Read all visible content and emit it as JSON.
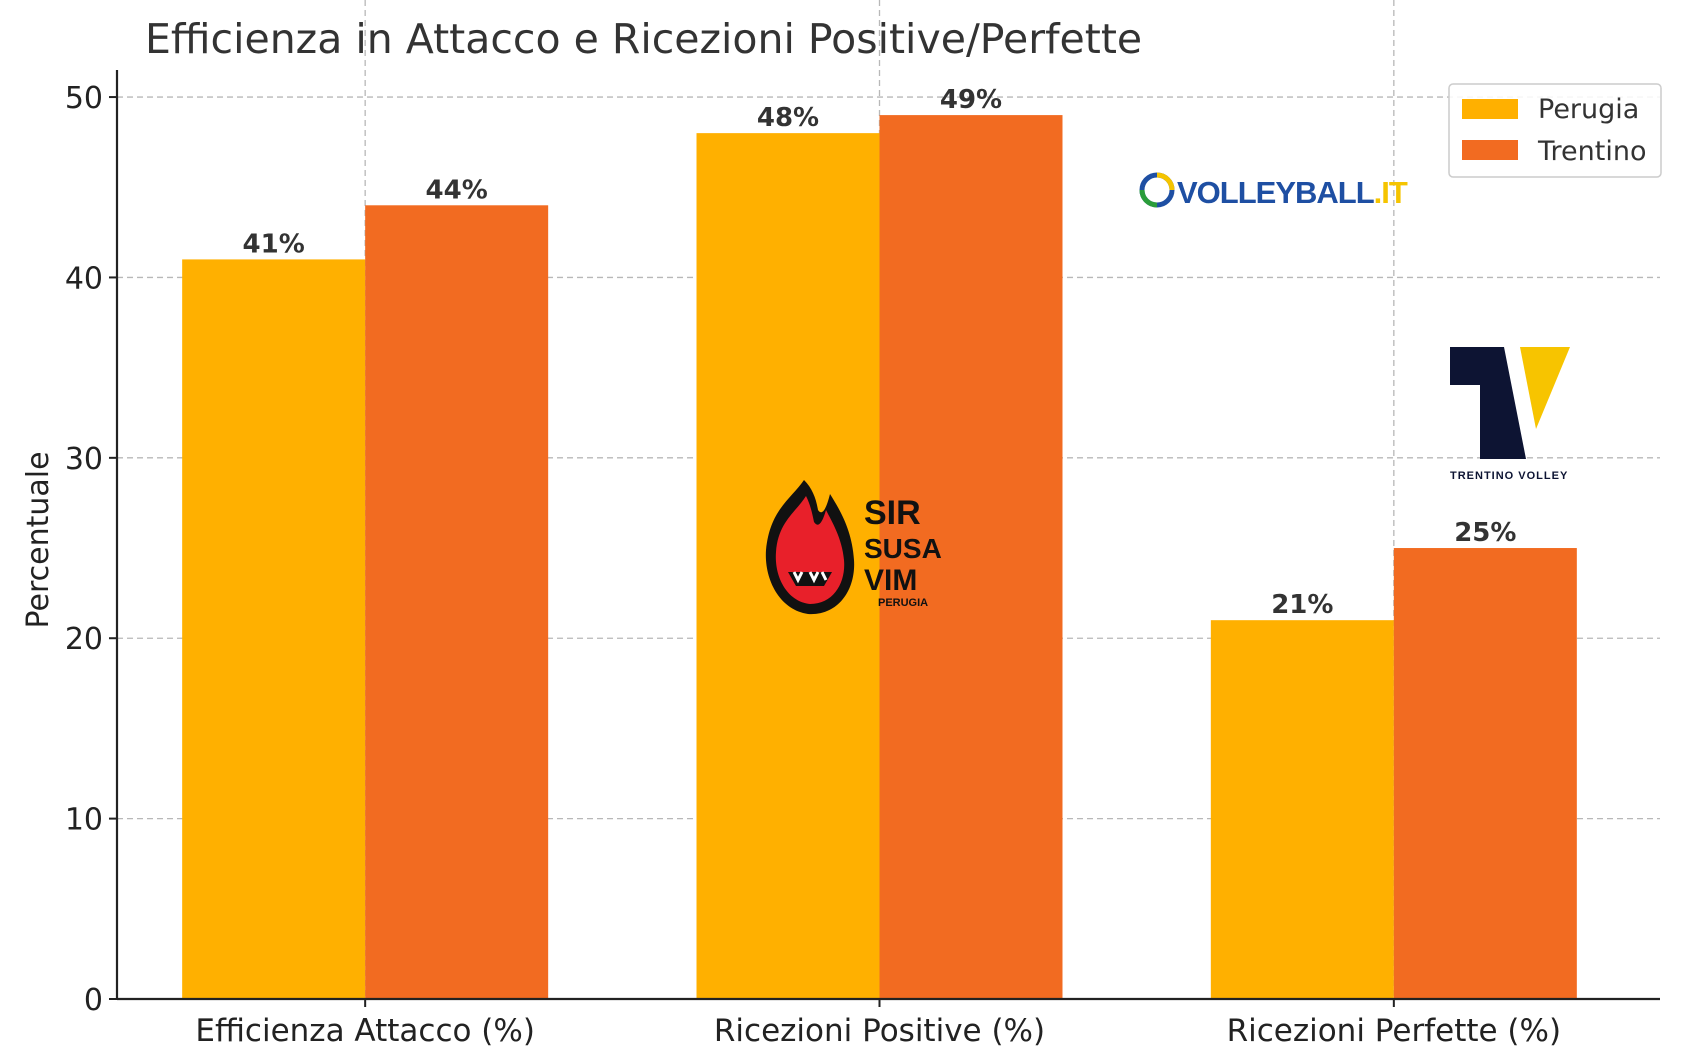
{
  "chart_data": {
    "type": "bar",
    "title": "Efficienza in Attacco e Ricezioni Positive/Perfette",
    "xlabel": "",
    "ylabel": "Percentuale",
    "ylim": [
      0,
      51.5
    ],
    "yticks": [
      0,
      10,
      20,
      30,
      40,
      50
    ],
    "grid": true,
    "legend_position": "top-right",
    "categories": [
      "Efficienza Attacco (%)",
      "Ricezioni Positive (%)",
      "Ricezioni Perfette (%)"
    ],
    "series": [
      {
        "name": "Perugia",
        "color": "#FFB000",
        "values": [
          41,
          48,
          21
        ],
        "labels": [
          "41%",
          "48%",
          "21%"
        ]
      },
      {
        "name": "Trentino",
        "color": "#F26B21",
        "values": [
          44,
          49,
          25
        ],
        "labels": [
          "44%",
          "49%",
          "25%"
        ]
      }
    ]
  },
  "logos": {
    "volleyball_it": "VOLLEYBALL.IT",
    "sir_susa_vim": [
      "SIR",
      "SUSA",
      "VIM",
      "PERUGIA"
    ],
    "trentino_volley": "TRENTINO VOLLEY"
  }
}
